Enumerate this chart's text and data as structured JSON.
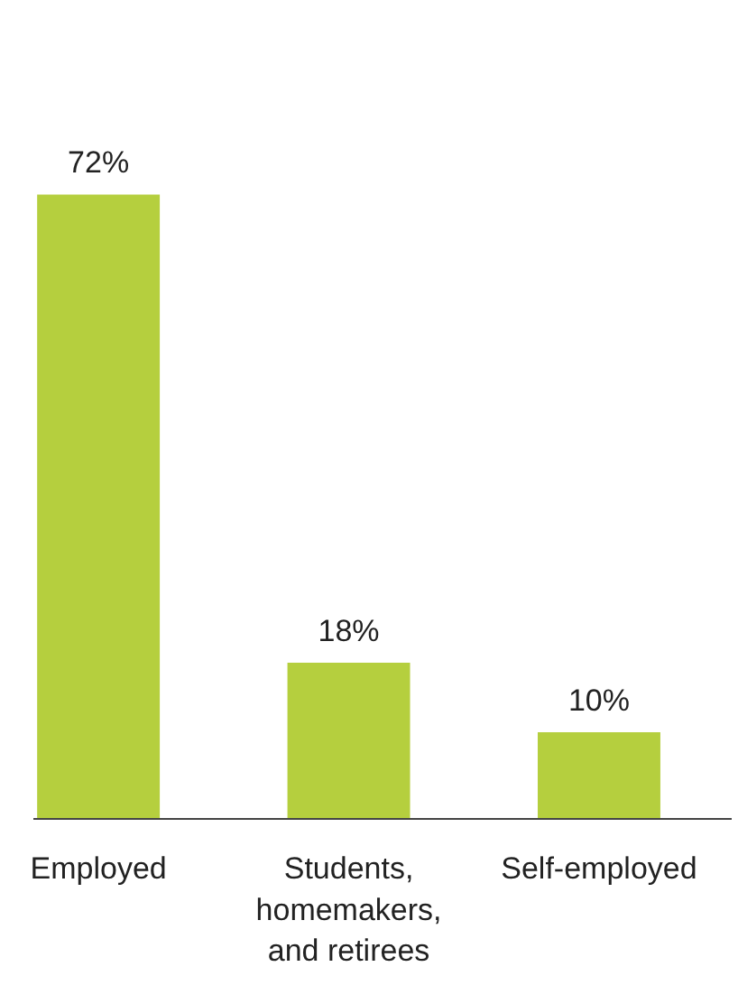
{
  "chart_data": {
    "type": "bar",
    "categories": [
      "Employed",
      "Students, homemakers, and retirees",
      "Self-employed"
    ],
    "values": [
      72,
      18,
      10
    ],
    "value_labels": [
      "72%",
      "18%",
      "10%"
    ],
    "color": "#b5cf3e",
    "grid": false
  }
}
